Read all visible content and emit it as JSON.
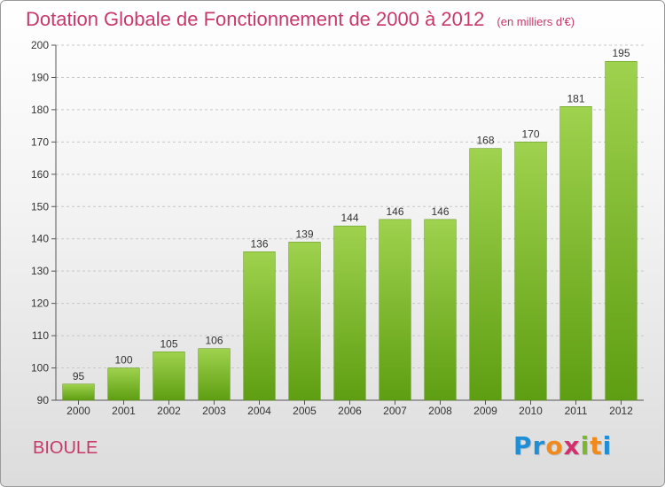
{
  "title": "Dotation Globale de Fonctionnement de 2000 à 2012",
  "subtitle": "(en milliers d'€)",
  "commune": "BIOULE",
  "logo": {
    "letters": [
      "P",
      "r",
      "o",
      "x",
      "i",
      "t",
      "i"
    ],
    "colors": [
      "#1e8fd6",
      "#1e8fd6",
      "#f08a1c",
      "#d12f6e",
      "#7ab82e",
      "#f08a1c",
      "#1e8fd6"
    ]
  },
  "colors": {
    "accent": "#c8386a",
    "bar_light": "#9fd24e",
    "bar_dark": "#5e9e12"
  },
  "chart_data": {
    "type": "bar",
    "categories": [
      "2000",
      "2001",
      "2002",
      "2003",
      "2004",
      "2005",
      "2006",
      "2007",
      "2008",
      "2009",
      "2010",
      "2011",
      "2012"
    ],
    "values": [
      95,
      100,
      105,
      106,
      136,
      139,
      144,
      146,
      146,
      168,
      170,
      181,
      195
    ],
    "data_labels": [
      "95",
      "100",
      "105",
      "106",
      "136",
      "139",
      "144",
      "146",
      "146",
      "168",
      "170",
      "181",
      "195"
    ],
    "title": "Dotation Globale de Fonctionnement de 2000 à 2012",
    "xlabel": "",
    "ylabel": "",
    "ylim": [
      90,
      200
    ],
    "yticks": [
      90,
      100,
      110,
      120,
      130,
      140,
      150,
      160,
      170,
      180,
      190,
      200
    ],
    "grid": true,
    "legend": "none"
  }
}
